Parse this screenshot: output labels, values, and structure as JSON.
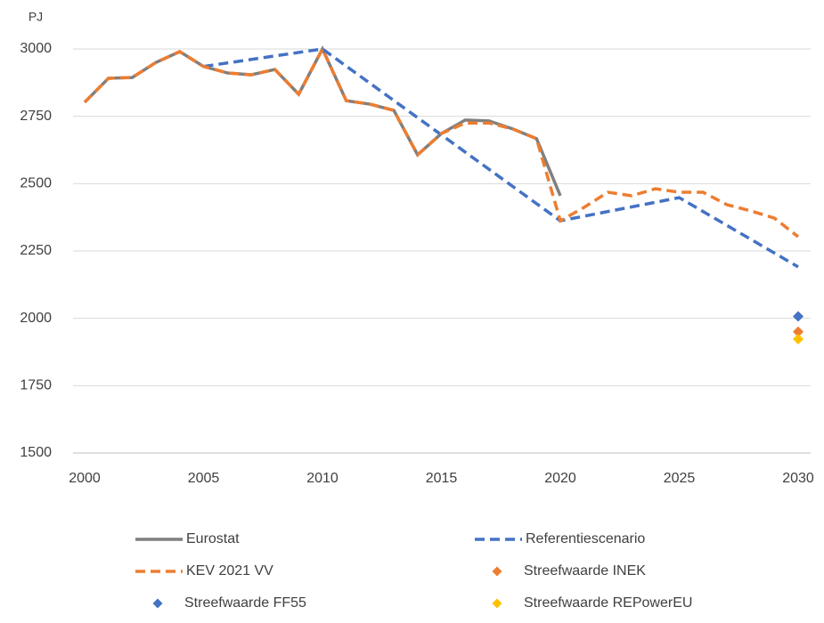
{
  "chart_data": {
    "type": "line",
    "ylabel": "PJ",
    "xlim": [
      2000,
      2030
    ],
    "xticks": [
      2000,
      2005,
      2010,
      2015,
      2020,
      2025,
      2030
    ],
    "ylim": [
      1500,
      3000
    ],
    "yticks": [
      1500,
      1750,
      2000,
      2250,
      2500,
      2750,
      3000
    ],
    "grid": true,
    "series": [
      {
        "name": "Eurostat",
        "color": "#7f7f7f",
        "style": "solid",
        "x": [
          2000,
          2001,
          2002,
          2003,
          2004,
          2005,
          2006,
          2007,
          2008,
          2009,
          2010,
          2011,
          2012,
          2013,
          2014,
          2015,
          2016,
          2017,
          2018,
          2019,
          2020
        ],
        "values": [
          2802,
          2891,
          2894,
          2950,
          2990,
          2935,
          2911,
          2904,
          2924,
          2832,
          3000,
          2808,
          2795,
          2772,
          2607,
          2686,
          2736,
          2733,
          2703,
          2667,
          2455
        ]
      },
      {
        "name": "Referentiescenario",
        "color": "#4472c4",
        "style": "dashed",
        "x": [
          2005,
          2010,
          2020,
          2025,
          2030
        ],
        "values": [
          2935,
          3000,
          2362,
          2448,
          2191
        ]
      },
      {
        "name": "KEV 2021 VV",
        "color": "#ed7d31",
        "style": "dashed",
        "x": [
          2000,
          2001,
          2002,
          2003,
          2004,
          2005,
          2006,
          2007,
          2008,
          2009,
          2010,
          2011,
          2012,
          2013,
          2014,
          2015,
          2016,
          2017,
          2018,
          2019,
          2020,
          2021,
          2022,
          2023,
          2024,
          2025,
          2026,
          2027,
          2028,
          2029,
          2030
        ],
        "values": [
          2802,
          2891,
          2894,
          2950,
          2990,
          2935,
          2911,
          2904,
          2924,
          2832,
          3000,
          2808,
          2795,
          2772,
          2607,
          2686,
          2725,
          2725,
          2703,
          2667,
          2362,
          2412,
          2468,
          2455,
          2481,
          2468,
          2468,
          2422,
          2399,
          2372,
          2303
        ]
      },
      {
        "name": "Streefwaarde INEK",
        "color": "#ed7d31",
        "style": "marker",
        "x": [
          2030
        ],
        "values": [
          1950
        ]
      },
      {
        "name": "Streefwaarde FF55",
        "color": "#4472c4",
        "style": "marker",
        "x": [
          2030
        ],
        "values": [
          2007
        ]
      },
      {
        "name": "Streefwaarde REPowerEU",
        "color": "#ffc000",
        "style": "marker",
        "x": [
          2030
        ],
        "values": [
          1923
        ]
      }
    ]
  }
}
